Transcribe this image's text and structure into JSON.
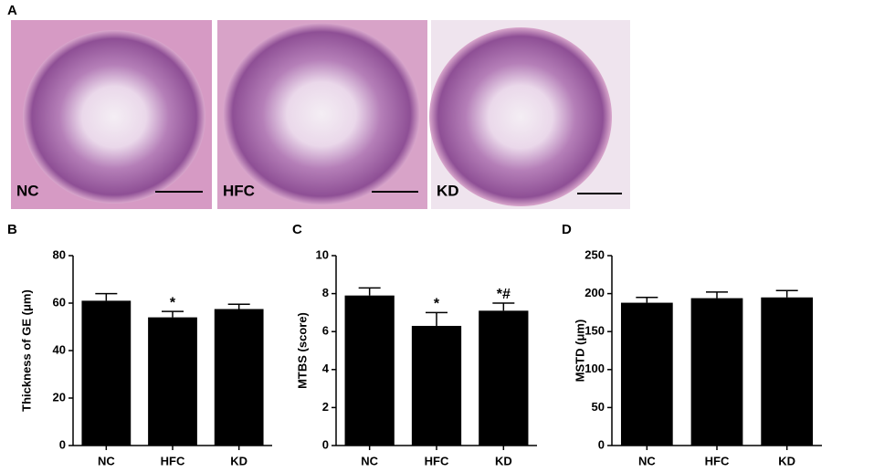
{
  "panel_a": {
    "label": "A",
    "images": [
      {
        "label": "NC"
      },
      {
        "label": "HFC"
      },
      {
        "label": "KD"
      }
    ]
  },
  "chart_data": [
    {
      "type": "bar",
      "panel_label": "B",
      "ylabel": "Thickness of GE (μm)",
      "categories": [
        "NC",
        "HFC",
        "KD"
      ],
      "values": [
        61,
        54,
        57.5
      ],
      "errors": [
        3,
        2.5,
        2
      ],
      "annotations": [
        null,
        "*",
        null
      ],
      "color": "#000000",
      "ylim": [
        0,
        80
      ],
      "yticks": [
        0,
        20,
        40,
        60,
        80
      ]
    },
    {
      "type": "bar",
      "panel_label": "C",
      "ylabel": "MTBS (score)",
      "categories": [
        "NC",
        "HFC",
        "KD"
      ],
      "values": [
        7.9,
        6.3,
        7.1
      ],
      "errors": [
        0.4,
        0.7,
        0.4
      ],
      "annotations": [
        null,
        "*",
        "*#"
      ],
      "color": "#000000",
      "ylim": [
        0,
        10
      ],
      "yticks": [
        0,
        2,
        4,
        6,
        8,
        10
      ]
    },
    {
      "type": "bar",
      "panel_label": "D",
      "ylabel": "MSTD (μm)",
      "categories": [
        "NC",
        "HFC",
        "KD"
      ],
      "values": [
        188,
        194,
        195
      ],
      "errors": [
        7,
        8,
        9
      ],
      "annotations": [
        null,
        null,
        null
      ],
      "color": "#000000",
      "ylim": [
        0,
        250
      ],
      "yticks": [
        0,
        50,
        100,
        150,
        200,
        250
      ]
    }
  ]
}
